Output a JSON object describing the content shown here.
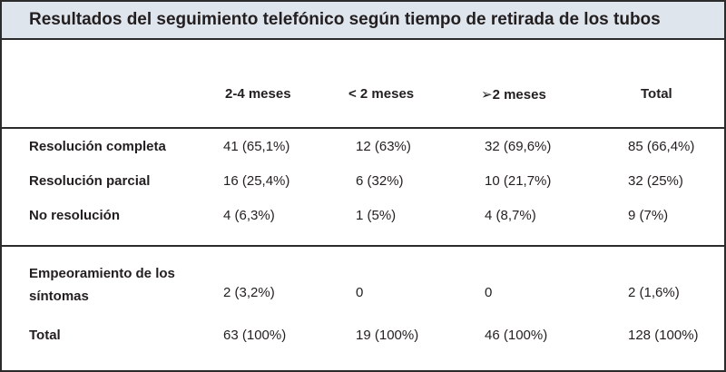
{
  "title": "Resultados del seguimiento telefónico según tiempo de retirada de los tubos",
  "table": {
    "headers": [
      "2-4 meses",
      "<  2 meses",
      "➢2 meses",
      "Total"
    ],
    "groups": [
      [
        {
          "label": "Resolución completa",
          "cells": [
            "41 (65,1%)",
            "12 (63%)",
            "32 (69,6%)",
            "85 (66,4%)"
          ]
        },
        {
          "label": "Resolución parcial",
          "cells": [
            "16 (25,4%)",
            "6 (32%)",
            "10 (21,7%)",
            "32 (25%)"
          ]
        },
        {
          "label": "No resolución",
          "cells": [
            "4 (6,3%)",
            "1 (5%)",
            "4 (8,7%)",
            "9 (7%)"
          ]
        }
      ],
      [
        {
          "label": "Empeoramiento de los síntomas",
          "cells": [
            "2 (3,2%)",
            "0",
            "0",
            "2 (1,6%)"
          ]
        },
        {
          "label": "Total",
          "cells": [
            "63 (100%)",
            "19 (100%)",
            "46 (100%)",
            "128 (100%)"
          ]
        }
      ]
    ]
  }
}
